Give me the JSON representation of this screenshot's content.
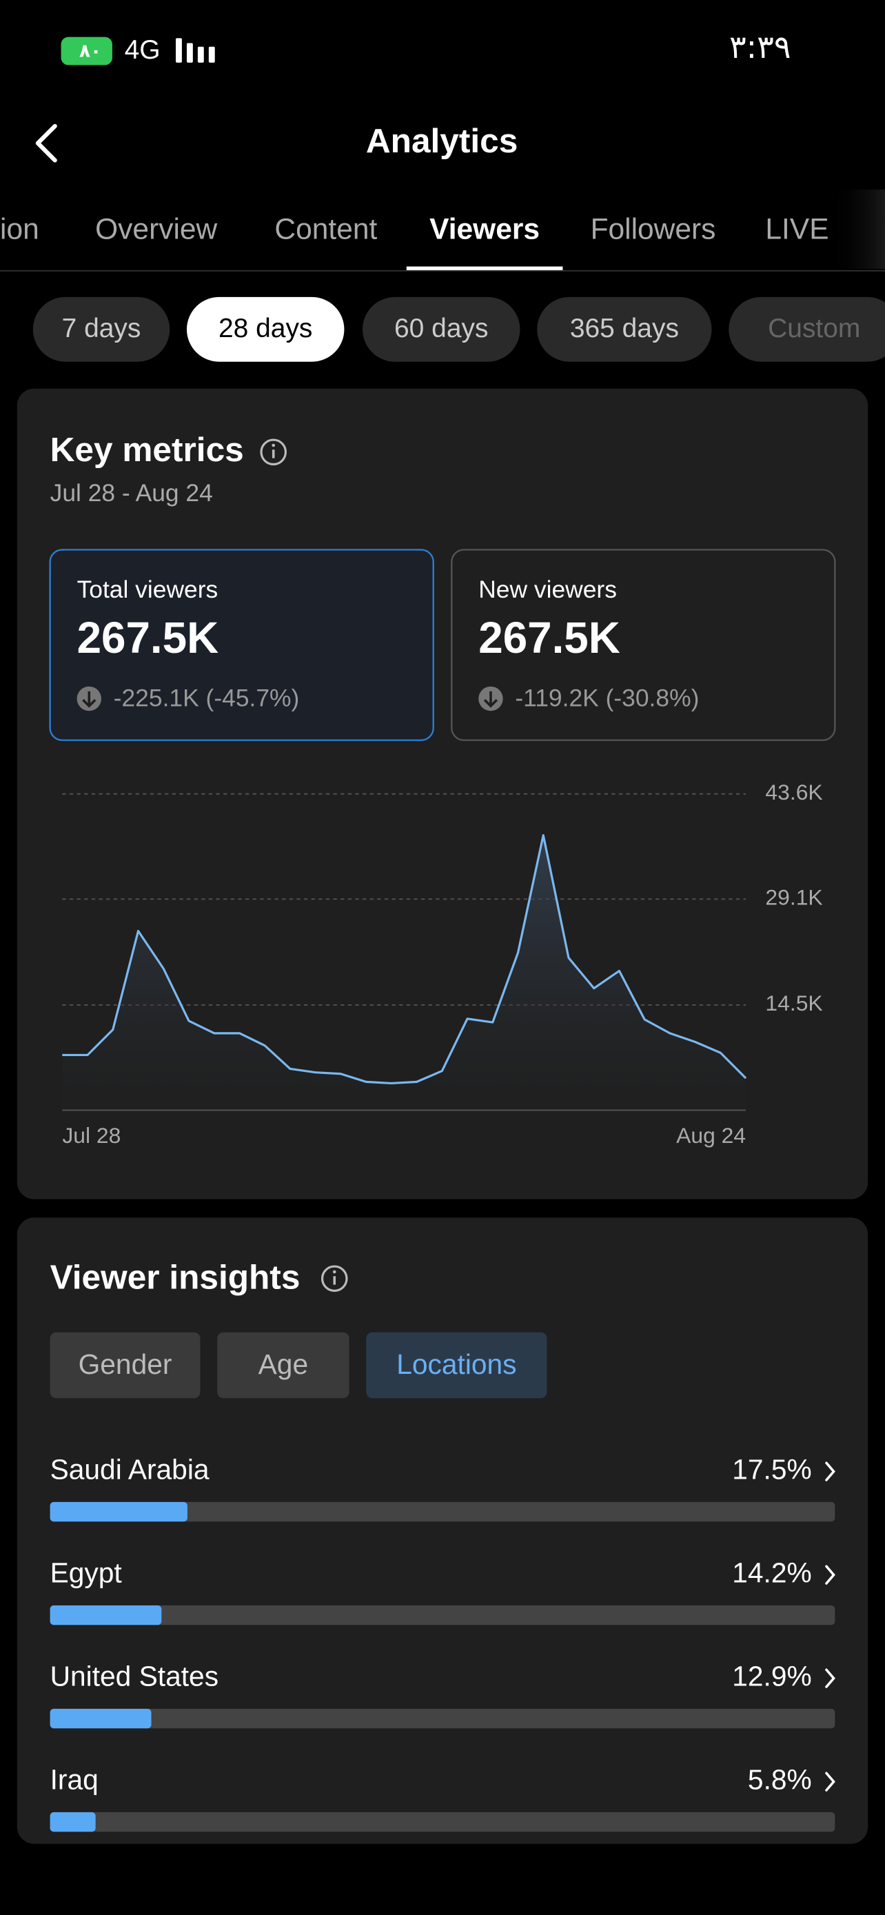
{
  "status_bar": {
    "battery": "٨٠",
    "network": "4G",
    "time": "٣:٣٩"
  },
  "header": {
    "title": "Analytics"
  },
  "tabs": [
    "ion",
    "Overview",
    "Content",
    "Viewers",
    "Followers",
    "LIVE"
  ],
  "periods": [
    "7 days",
    "28 days",
    "60 days",
    "365 days",
    "Custom"
  ],
  "key_metrics": {
    "title": "Key metrics",
    "date_range": "Jul 28 - Aug 24",
    "cards": [
      {
        "label": "Total viewers",
        "value": "267.5K",
        "change": "-225.1K (-45.7%)"
      },
      {
        "label": "New viewers",
        "value": "267.5K",
        "change": "-119.2K (-30.8%)"
      }
    ]
  },
  "viewer_insights": {
    "title": "Viewer insights",
    "filters": [
      "Gender",
      "Age",
      "Locations"
    ]
  },
  "chart_data": [
    {
      "type": "line",
      "x": [
        "Jul 28",
        null,
        null,
        null,
        null,
        null,
        null,
        null,
        null,
        null,
        null,
        null,
        null,
        null,
        null,
        null,
        null,
        null,
        null,
        null,
        null,
        null,
        null,
        null,
        null,
        null,
        null,
        "Aug 24"
      ],
      "values": [
        7600,
        7600,
        11100,
        24700,
        19500,
        12300,
        10600,
        10600,
        8900,
        5700,
        5200,
        5000,
        3900,
        3700,
        3900,
        5400,
        12600,
        12100,
        21700,
        37900,
        21000,
        16800,
        19200,
        12500,
        10600,
        9400,
        7900,
        4400
      ],
      "color": "#7ab8f0",
      "ylim": [
        0,
        43600
      ],
      "yticks": [
        {
          "value": 14500,
          "label": "14.5K"
        },
        {
          "value": 29100,
          "label": "29.1K"
        },
        {
          "value": 43600,
          "label": "43.6K"
        }
      ],
      "grid": true
    },
    {
      "type": "bar",
      "categories": [
        "Saudi Arabia",
        "Egypt",
        "United States",
        "Iraq"
      ],
      "values": [
        17.5,
        14.2,
        12.9,
        5.8
      ],
      "value_labels": [
        "17.5%",
        "14.2%",
        "12.9%",
        "5.8%"
      ],
      "xlim": [
        0,
        100
      ],
      "color": "#5aa9f5"
    }
  ]
}
